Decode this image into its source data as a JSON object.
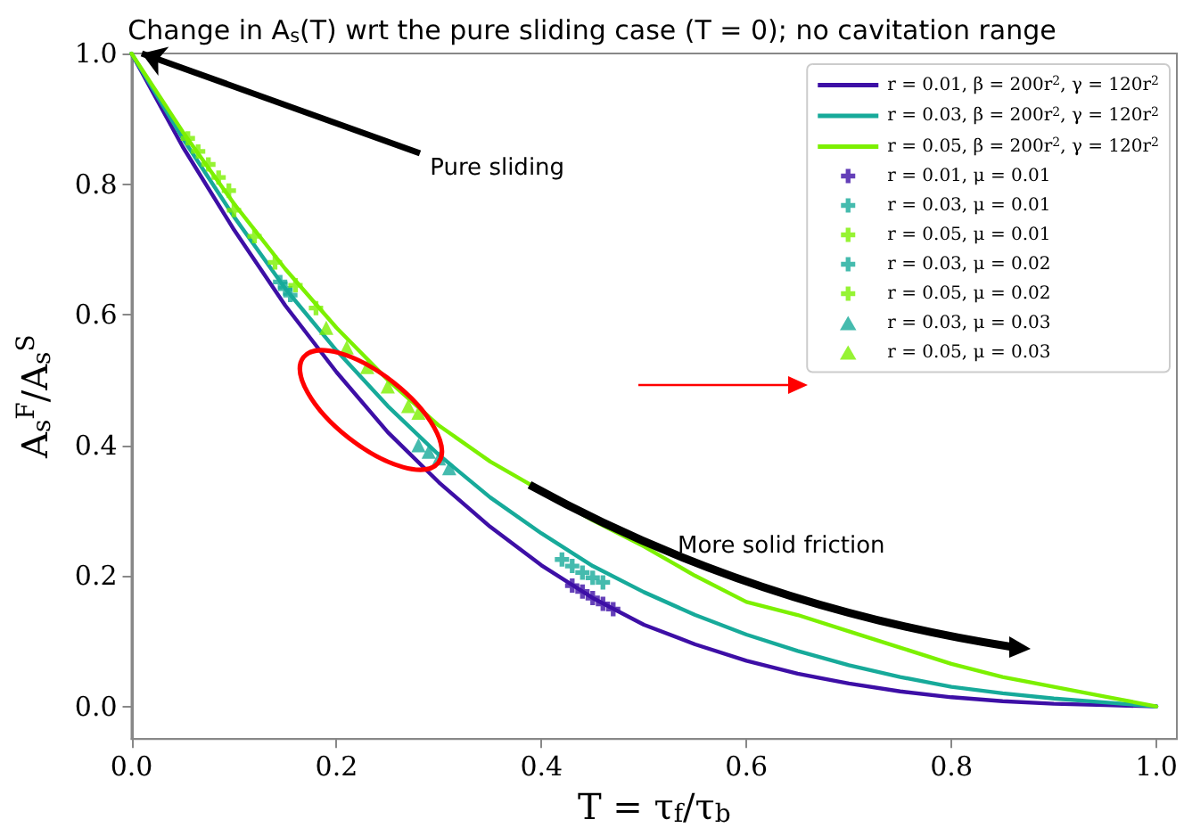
{
  "chart_data": {
    "type": "line",
    "title": "Change in A$_{s}$(T) wrt the pure sliding case (T = 0); no cavitation range",
    "xlabel": "T = τ$_{f}$/τ$_{b}$",
    "ylabel": "A$_{s}$$^{F}$/A$_{s}$$^{S}$",
    "annotations": [
      {
        "text": "Pure sliding",
        "x": 0.01,
        "y": 1.0
      },
      "More solid friction"
    ],
    "x": [
      0,
      0.05,
      0.1,
      0.15,
      0.2,
      0.25,
      0.3,
      0.35,
      0.4,
      0.45,
      0.5,
      0.55,
      0.6,
      0.65,
      0.7,
      0.75,
      0.8,
      0.85,
      0.9,
      0.95,
      1.0
    ],
    "series": [
      {
        "name": "r = 0.01, β = 200r$^{2}$, γ = 120r$^{2}$",
        "color": "#3d0fa6",
        "values": [
          1,
          0.857,
          0.73,
          0.614,
          0.512,
          0.42,
          0.343,
          0.275,
          0.216,
          0.166,
          0.125,
          0.095,
          0.07,
          0.05,
          0.035,
          0.023,
          0.014,
          0.008,
          0.004,
          0.002,
          0
        ]
      },
      {
        "name": "r = 0.03, β = 200r$^{2}$, γ = 120r$^{2}$",
        "color": "#17aa9a",
        "values": [
          1,
          0.87,
          0.75,
          0.64,
          0.545,
          0.46,
          0.385,
          0.32,
          0.265,
          0.215,
          0.175,
          0.14,
          0.11,
          0.085,
          0.063,
          0.045,
          0.03,
          0.02,
          0.012,
          0.006,
          0
        ]
      },
      {
        "name": "r = 0.05, β = 200r$^{2}$, γ = 120r$^{2}$",
        "color": "#7cf000",
        "values": [
          1,
          0.88,
          0.77,
          0.67,
          0.58,
          0.5,
          0.43,
          0.375,
          0.33,
          0.285,
          0.245,
          0.2,
          0.16,
          0.14,
          0.115,
          0.09,
          0.065,
          0.045,
          0.03,
          0.015,
          0
        ]
      },
      {
        "name": "r = 0.01, μ = 0.01",
        "type": "scatter",
        "marker": "cross",
        "color": "#3d0fa6",
        "x": [
          0.43,
          0.44,
          0.45,
          0.46,
          0.47
        ],
        "values": [
          0.185,
          0.176,
          0.166,
          0.157,
          0.149
        ]
      },
      {
        "name": "r = 0.03, μ = 0.01",
        "type": "scatter",
        "marker": "cross",
        "color": "#17aa9a",
        "x": [
          0.145,
          0.15,
          0.155
        ],
        "values": [
          0.65,
          0.64,
          0.63
        ]
      },
      {
        "name": "r = 0.05, μ = 0.01",
        "type": "scatter",
        "marker": "cross",
        "color": "#7cf000",
        "x": [
          0.055,
          0.065,
          0.075,
          0.085,
          0.095
        ],
        "values": [
          0.87,
          0.85,
          0.83,
          0.81,
          0.79
        ]
      },
      {
        "name": "r = 0.03, μ = 0.02",
        "type": "scatter",
        "marker": "cross",
        "color": "#17aa9a",
        "x": [
          0.42,
          0.43,
          0.44,
          0.45,
          0.46
        ],
        "values": [
          0.225,
          0.215,
          0.205,
          0.197,
          0.19
        ]
      },
      {
        "name": "r = 0.05, μ = 0.02",
        "type": "scatter",
        "marker": "cross",
        "color": "#7cf000",
        "x": [
          0.1,
          0.12,
          0.14,
          0.16,
          0.18
        ],
        "values": [
          0.76,
          0.72,
          0.68,
          0.645,
          0.61
        ]
      },
      {
        "name": "r = 0.03, μ = 0.03",
        "type": "scatter",
        "marker": "triangle",
        "color": "#17aa9a",
        "x": [
          0.28,
          0.29,
          0.3,
          0.31
        ],
        "values": [
          0.4,
          0.39,
          0.38,
          0.365
        ]
      },
      {
        "name": "r = 0.05, μ = 0.03",
        "type": "scatter",
        "marker": "triangle",
        "color": "#7cf000",
        "x": [
          0.19,
          0.21,
          0.23,
          0.25,
          0.27,
          0.28
        ],
        "values": [
          0.58,
          0.55,
          0.52,
          0.49,
          0.46,
          0.45
        ]
      }
    ],
    "xlim": [
      0,
      1.02
    ],
    "ylim": [
      -0.05,
      1.0
    ],
    "xticks": [
      {
        "value": 0,
        "label": "0.0"
      },
      {
        "value": 0.2,
        "label": "0.2"
      },
      {
        "value": 0.4,
        "label": "0.4"
      },
      {
        "value": 0.6,
        "label": "0.6"
      },
      {
        "value": 0.8,
        "label": "0.8"
      },
      {
        "value": 1,
        "label": "1.0"
      }
    ],
    "yticks": [
      {
        "value": 0,
        "label": "0.0"
      },
      {
        "value": 0.2,
        "label": "0.2"
      },
      {
        "value": 0.4,
        "label": "0.4"
      },
      {
        "value": 0.6,
        "label": "0.6"
      },
      {
        "value": 0.8,
        "label": "0.8"
      },
      {
        "value": 1,
        "label": "1.0"
      }
    ],
    "grid": false,
    "legend": "top right",
    "marker": "none",
    "line_style": "solid"
  }
}
